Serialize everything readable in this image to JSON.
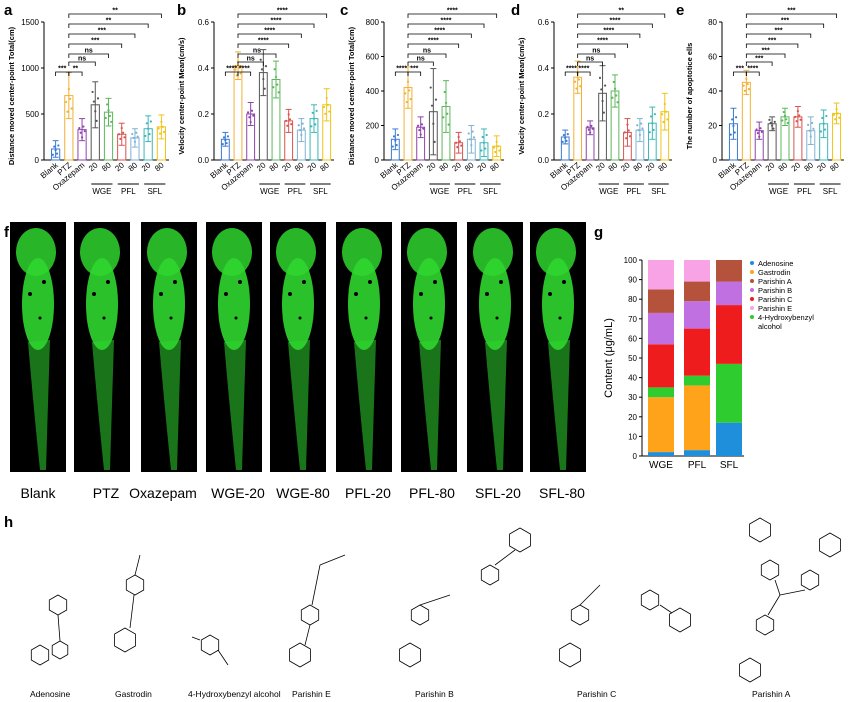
{
  "panels": {
    "a": "a",
    "b": "b",
    "c": "c",
    "d": "d",
    "e": "e",
    "f": "f",
    "g": "g",
    "h": "h"
  },
  "chart_data": [
    {
      "id": "a",
      "type": "bar",
      "ylabel": "Distance moved center-point Total(cm)",
      "ylim": [
        0,
        1500
      ],
      "yticks": [
        "0",
        "500",
        "1000",
        "1500"
      ],
      "categories": [
        "Blank",
        "PTZ",
        "Oxazepam",
        "20",
        "80",
        "20",
        "80",
        "20",
        "80"
      ],
      "groups": [
        "WGE",
        "PFL",
        "SFL"
      ],
      "values": [
        120,
        700,
        330,
        600,
        520,
        280,
        240,
        340,
        360
      ],
      "errors": [
        90,
        250,
        120,
        250,
        150,
        120,
        100,
        140,
        130
      ],
      "sig": [
        "***",
        "**",
        "ns",
        "ns",
        "***",
        "***",
        "**",
        "**"
      ]
    },
    {
      "id": "b",
      "type": "bar",
      "ylabel": "Velocity center-point Mean(cm/s)",
      "ylim": [
        0,
        0.6
      ],
      "yticks": [
        "0.0",
        "0.2",
        "0.4",
        "0.6"
      ],
      "categories": [
        "Blank",
        "PTZ",
        "Oxazepam",
        "20",
        "80",
        "20",
        "80",
        "20",
        "80"
      ],
      "groups": [
        "WGE",
        "PFL",
        "SFL"
      ],
      "values": [
        0.09,
        0.41,
        0.2,
        0.38,
        0.35,
        0.17,
        0.13,
        0.18,
        0.24
      ],
      "errors": [
        0.03,
        0.06,
        0.05,
        0.1,
        0.08,
        0.05,
        0.05,
        0.06,
        0.07
      ],
      "sig": [
        "****",
        "****",
        "ns",
        "ns",
        "****",
        "****",
        "****",
        "****"
      ]
    },
    {
      "id": "c",
      "type": "bar",
      "ylabel": "Distance moved center-point Total(cm)",
      "ylim": [
        0,
        800
      ],
      "yticks": [
        "0",
        "200",
        "400",
        "600",
        "800"
      ],
      "categories": [
        "Blank",
        "PTZ",
        "Oxazepam",
        "20",
        "80",
        "20",
        "80",
        "20",
        "80"
      ],
      "groups": [
        "WGE",
        "PFL",
        "SFL"
      ],
      "values": [
        120,
        420,
        190,
        280,
        310,
        100,
        120,
        100,
        80
      ],
      "errors": [
        60,
        120,
        60,
        250,
        150,
        60,
        80,
        80,
        60
      ],
      "sig": [
        "****",
        "***",
        "ns",
        "ns",
        "****",
        "****",
        "****",
        "****"
      ]
    },
    {
      "id": "d",
      "type": "bar",
      "ylabel": "Velocity center-point Mean(cm/s)",
      "ylim": [
        0,
        0.6
      ],
      "yticks": [
        "0.0",
        "0.2",
        "0.4",
        "0.6"
      ],
      "categories": [
        "Blank",
        "PTZ",
        "Oxazepam",
        "20",
        "80",
        "20",
        "80",
        "20",
        "80"
      ],
      "groups": [
        "WGE",
        "PFL",
        "SFL"
      ],
      "values": [
        0.1,
        0.36,
        0.14,
        0.29,
        0.3,
        0.12,
        0.13,
        0.16,
        0.21
      ],
      "errors": [
        0.03,
        0.07,
        0.03,
        0.12,
        0.07,
        0.06,
        0.05,
        0.07,
        0.08
      ],
      "sig": [
        "****",
        "****",
        "ns",
        "ns",
        "****",
        "****",
        "****",
        "**"
      ]
    },
    {
      "id": "e",
      "type": "bar",
      "ylabel": "The number of apoptotice ells",
      "ylim": [
        0,
        80
      ],
      "yticks": [
        "0",
        "20",
        "40",
        "60",
        "80"
      ],
      "categories": [
        "Blank",
        "PTZ",
        "Oxazepam",
        "20",
        "80",
        "20",
        "80",
        "20",
        "80"
      ],
      "groups": [
        "WGE",
        "PFL",
        "SFL"
      ],
      "values": [
        21,
        45,
        17,
        21,
        25,
        25,
        17,
        21,
        27
      ],
      "errors": [
        9,
        7,
        5,
        4,
        5,
        6,
        8,
        8,
        6
      ],
      "sig": [
        "***",
        "****",
        "***",
        "***",
        "***",
        "***",
        "***",
        "***"
      ]
    },
    {
      "id": "g",
      "type": "bar",
      "stacked": true,
      "ylabel": "Content (μg/mL)",
      "ylim": [
        0,
        100
      ],
      "yticks": [
        "0",
        "10",
        "20",
        "30",
        "40",
        "50",
        "60",
        "70",
        "80",
        "90",
        "100"
      ],
      "categories": [
        "WGE",
        "PFL",
        "SFL"
      ],
      "series": [
        {
          "name": "Adenosine",
          "color": "#1f8fdc",
          "values": [
            2,
            3,
            17
          ]
        },
        {
          "name": "Gastrodin",
          "color": "#ffa31a",
          "values": [
            28,
            33,
            0
          ]
        },
        {
          "name": "4-Hydroxybenzyl alcohol",
          "color": "#2ecc2e",
          "values": [
            5,
            5,
            30
          ]
        },
        {
          "name": "Parishin C",
          "color": "#ee1c1c",
          "values": [
            22,
            24,
            30
          ]
        },
        {
          "name": "Parishin B",
          "color": "#c070e0",
          "values": [
            16,
            14,
            12
          ]
        },
        {
          "name": "Parishin A",
          "color": "#b5523b",
          "values": [
            12,
            10,
            11
          ]
        },
        {
          "name": "Parishin E",
          "color": "#f7a3e6",
          "values": [
            15,
            11,
            0
          ]
        }
      ],
      "legend": [
        "Adenosine",
        "Gastrodin",
        "Parishin A",
        "Parishin B",
        "Parishin C",
        "Parishin E",
        "4-Hydroxybenzyl",
        "alcohol"
      ],
      "legend_colors": [
        "#1f8fdc",
        "#ffa31a",
        "#b5523b",
        "#c070e0",
        "#ee1c1c",
        "#f7a3e6",
        "#2ecc2e"
      ]
    }
  ],
  "fish_labels": [
    "Blank",
    "PTZ",
    "Oxazepam",
    "WGE-20",
    "WGE-80",
    "PFL-20",
    "PFL-80",
    "SFL-20",
    "SFL-80"
  ],
  "compounds": [
    "Adenosine",
    "Gastrodin",
    "4-Hydroxybenzyl alcohol",
    "Parishin E",
    "Parishin B",
    "Parishin C",
    "Parishin A"
  ],
  "colors": {
    "fish": "#2fd62f",
    "bars": [
      "#3a7bd5",
      "#f2b134",
      "#8e44ad",
      "#555555",
      "#5cb85c",
      "#d9534f",
      "#7fb3d5",
      "#3cb7b7",
      "#f0c419"
    ]
  }
}
